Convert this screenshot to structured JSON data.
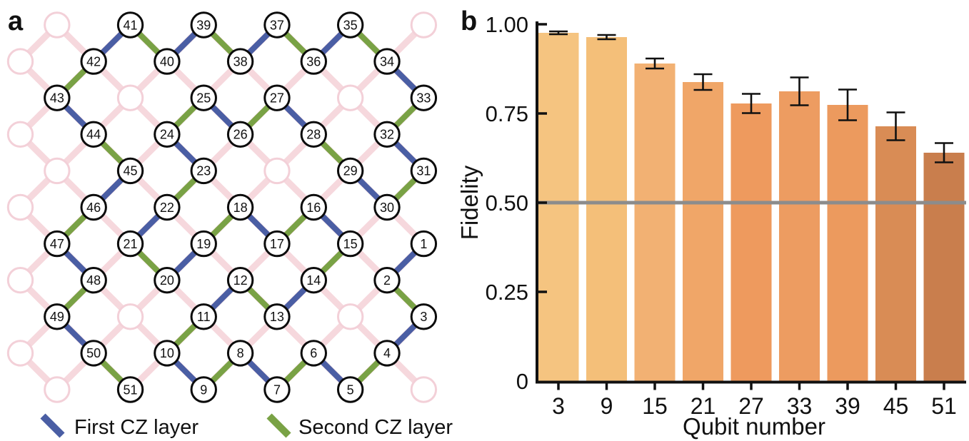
{
  "figure": {
    "panel_a_label": "a",
    "panel_b_label": "b"
  },
  "lattice": {
    "legend": [
      {
        "label": "First CZ layer",
        "color": "#4a5ea4"
      },
      {
        "label": "Second CZ layer",
        "color": "#79a245"
      }
    ],
    "colors": {
      "first_cz": "#4a5ea4",
      "second_cz": "#79a245",
      "unused_edge": "#f6d8dd",
      "unused_node_stroke": "#f3d0d8",
      "node_stroke": "#0b0b0b",
      "node_fill": "#ffffff"
    },
    "nodes": [
      [
        1,
        11,
        6
      ],
      [
        2,
        10,
        7
      ],
      [
        3,
        11,
        8
      ],
      [
        4,
        10,
        9
      ],
      [
        5,
        9,
        10
      ],
      [
        6,
        8,
        9
      ],
      [
        7,
        7,
        10
      ],
      [
        8,
        6,
        9
      ],
      [
        9,
        5,
        10
      ],
      [
        10,
        4,
        9
      ],
      [
        11,
        5,
        8
      ],
      [
        12,
        6,
        7
      ],
      [
        13,
        7,
        8
      ],
      [
        14,
        8,
        7
      ],
      [
        15,
        9,
        6
      ],
      [
        16,
        8,
        5
      ],
      [
        17,
        7,
        6
      ],
      [
        18,
        6,
        5
      ],
      [
        19,
        5,
        6
      ],
      [
        20,
        4,
        7
      ],
      [
        21,
        3,
        6
      ],
      [
        22,
        4,
        5
      ],
      [
        23,
        5,
        4
      ],
      [
        24,
        4,
        3
      ],
      [
        25,
        5,
        2
      ],
      [
        26,
        6,
        3
      ],
      [
        27,
        7,
        2
      ],
      [
        28,
        8,
        3
      ],
      [
        29,
        9,
        4
      ],
      [
        30,
        10,
        5
      ],
      [
        31,
        11,
        4
      ],
      [
        32,
        10,
        3
      ],
      [
        33,
        11,
        2
      ],
      [
        34,
        10,
        1
      ],
      [
        35,
        9,
        0
      ],
      [
        36,
        8,
        1
      ],
      [
        37,
        7,
        0
      ],
      [
        38,
        6,
        1
      ],
      [
        39,
        5,
        0
      ],
      [
        40,
        4,
        1
      ],
      [
        41,
        3,
        0
      ],
      [
        42,
        2,
        1
      ],
      [
        43,
        1,
        2
      ],
      [
        44,
        2,
        3
      ],
      [
        45,
        3,
        4
      ],
      [
        46,
        2,
        5
      ],
      [
        47,
        1,
        6
      ],
      [
        48,
        2,
        7
      ],
      [
        49,
        1,
        8
      ],
      [
        50,
        2,
        9
      ],
      [
        51,
        3,
        10
      ]
    ],
    "unused_sites": [
      [
        1,
        0
      ],
      [
        11,
        0
      ],
      [
        0,
        1
      ],
      [
        3,
        2
      ],
      [
        9,
        2
      ],
      [
        0,
        3
      ],
      [
        1,
        4
      ],
      [
        7,
        4
      ],
      [
        0,
        5
      ],
      [
        0,
        7
      ],
      [
        3,
        8
      ],
      [
        9,
        8
      ],
      [
        0,
        9
      ],
      [
        1,
        10
      ],
      [
        11,
        10
      ]
    ],
    "edges": [
      [
        1,
        2,
        "first"
      ],
      [
        2,
        3,
        "second"
      ],
      [
        3,
        4,
        "first"
      ],
      [
        4,
        5,
        "second"
      ],
      [
        5,
        6,
        "first"
      ],
      [
        6,
        7,
        "second"
      ],
      [
        7,
        8,
        "first"
      ],
      [
        8,
        9,
        "second"
      ],
      [
        9,
        10,
        "first"
      ],
      [
        10,
        11,
        "second"
      ],
      [
        11,
        12,
        "first"
      ],
      [
        12,
        13,
        "second"
      ],
      [
        13,
        14,
        "first"
      ],
      [
        14,
        15,
        "second"
      ],
      [
        15,
        16,
        "first"
      ],
      [
        16,
        17,
        "second"
      ],
      [
        17,
        18,
        "first"
      ],
      [
        18,
        19,
        "second"
      ],
      [
        19,
        20,
        "first"
      ],
      [
        20,
        21,
        "second"
      ],
      [
        21,
        22,
        "first"
      ],
      [
        22,
        23,
        "second"
      ],
      [
        23,
        24,
        "first"
      ],
      [
        24,
        25,
        "second"
      ],
      [
        25,
        26,
        "first"
      ],
      [
        26,
        27,
        "second"
      ],
      [
        27,
        28,
        "first"
      ],
      [
        28,
        29,
        "second"
      ],
      [
        29,
        30,
        "first"
      ],
      [
        30,
        31,
        "second"
      ],
      [
        31,
        32,
        "first"
      ],
      [
        32,
        33,
        "second"
      ],
      [
        33,
        34,
        "first"
      ],
      [
        34,
        35,
        "second"
      ],
      [
        35,
        36,
        "first"
      ],
      [
        36,
        37,
        "second"
      ],
      [
        37,
        38,
        "first"
      ],
      [
        38,
        39,
        "second"
      ],
      [
        39,
        40,
        "first"
      ],
      [
        40,
        41,
        "second"
      ],
      [
        41,
        42,
        "first"
      ],
      [
        42,
        43,
        "second"
      ],
      [
        43,
        44,
        "first"
      ],
      [
        44,
        45,
        "second"
      ],
      [
        45,
        46,
        "first"
      ],
      [
        46,
        47,
        "second"
      ],
      [
        47,
        48,
        "first"
      ],
      [
        48,
        49,
        "second"
      ],
      [
        49,
        50,
        "first"
      ],
      [
        50,
        51,
        "second"
      ]
    ]
  },
  "chart_data": {
    "type": "bar",
    "title": "",
    "xlabel": "Qubit number",
    "ylabel": "Fidelity",
    "categories": [
      "3",
      "9",
      "15",
      "21",
      "27",
      "33",
      "39",
      "45",
      "51"
    ],
    "values": [
      0.976,
      0.964,
      0.89,
      0.838,
      0.778,
      0.812,
      0.774,
      0.714,
      0.64
    ],
    "errors": [
      0.004,
      0.006,
      0.014,
      0.022,
      0.027,
      0.039,
      0.043,
      0.039,
      0.027
    ],
    "bar_colors": [
      "#f5c480",
      "#f4bf79",
      "#f2b173",
      "#f0a668",
      "#ee9a5e",
      "#ed9c61",
      "#ec9a5e",
      "#d98c55",
      "#c97e4d"
    ],
    "ylim": [
      0,
      1.0
    ],
    "yticks": [
      {
        "value": 0,
        "label": "0"
      },
      {
        "value": 0.25,
        "label": "0.25"
      },
      {
        "value": 0.5,
        "label": "0.50"
      },
      {
        "value": 0.75,
        "label": "0.75"
      },
      {
        "value": 1.0,
        "label": "1.00"
      }
    ],
    "reference_line": {
      "value": 0.5,
      "color": "#8c8c8c"
    },
    "grid": false,
    "legend_position": "none"
  }
}
